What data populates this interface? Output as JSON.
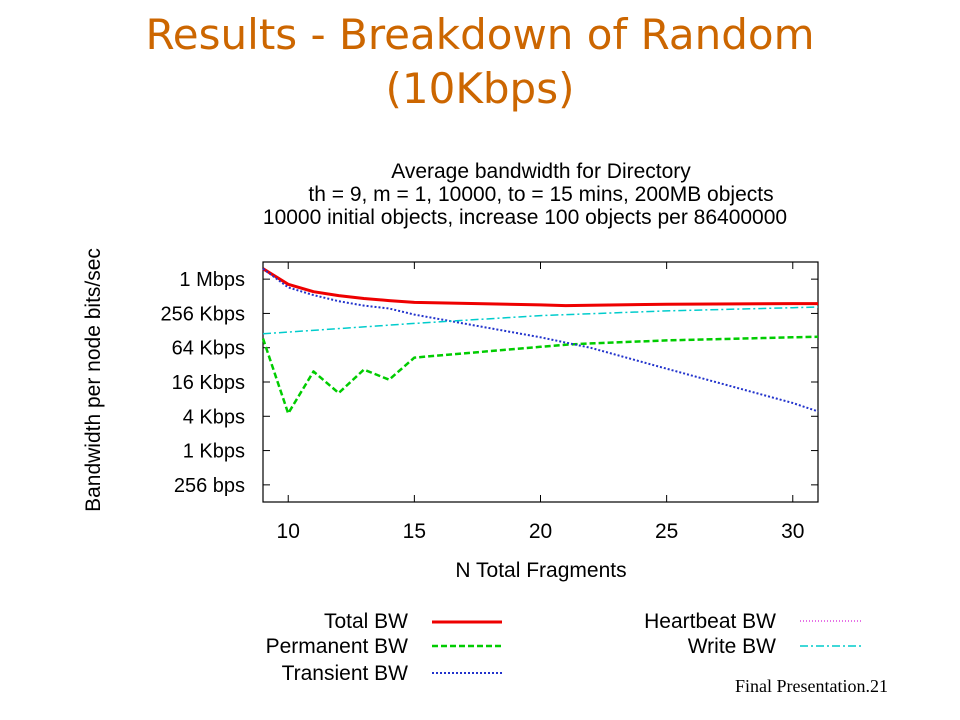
{
  "slide": {
    "title_line1": "Results - Breakdown of Random",
    "title_line2": "(10Kbps)",
    "footer": "Final Presentation.21"
  },
  "chart_data": {
    "type": "line",
    "title_lines": [
      "Average bandwidth for Directory",
      "th = 9, m = 1, 10000, to = 15 mins, 200MB objects",
      "10000 initial objects, increase 100 objects per 86400000"
    ],
    "xlabel": "N Total Fragments",
    "ylabel": "Bandwidth per node bits/sec",
    "y_scale": "log2",
    "xlim": [
      9,
      31
    ],
    "ylim_bits_per_sec": [
      128,
      2097152
    ],
    "x_ticks": [
      10,
      15,
      20,
      25,
      30
    ],
    "y_ticks": [
      {
        "label": "256 bps",
        "value": 256
      },
      {
        "label": "1 Kbps",
        "value": 1024
      },
      {
        "label": "4 Kbps",
        "value": 4096
      },
      {
        "label": "16 Kbps",
        "value": 16384
      },
      {
        "label": "64 Kbps",
        "value": 65536
      },
      {
        "label": "256 Kbps",
        "value": 262144
      },
      {
        "label": "1 Mbps",
        "value": 1048576
      }
    ],
    "grid": false,
    "legend_position": "bottom",
    "series": [
      {
        "name": "Total BW",
        "color": "#ee0000",
        "dash": "solid",
        "width": 3,
        "x": [
          9,
          10,
          11,
          12,
          13,
          14,
          15,
          20,
          21,
          22,
          25,
          30,
          31
        ],
        "y": [
          1600000,
          850000,
          630000,
          540000,
          480000,
          440000,
          410000,
          370000,
          360000,
          365000,
          380000,
          390000,
          390000
        ]
      },
      {
        "name": "Permanent BW",
        "color": "#00cc00",
        "dash": "6,3",
        "width": 2.5,
        "x": [
          9,
          10,
          11,
          12,
          13,
          14,
          15,
          20,
          21,
          22,
          25,
          30,
          31
        ],
        "y": [
          95000,
          4600,
          25000,
          10500,
          27000,
          18000,
          44000,
          68000,
          74000,
          78000,
          88000,
          100000,
          102000
        ]
      },
      {
        "name": "Transient BW",
        "color": "#2233cc",
        "dash": "2,2",
        "width": 2,
        "x": [
          9,
          10,
          11,
          12,
          13,
          14,
          15,
          20,
          22,
          25,
          30,
          31
        ],
        "y": [
          1600000,
          750000,
          550000,
          430000,
          360000,
          320000,
          250000,
          100000,
          65000,
          28000,
          7000,
          5000
        ]
      },
      {
        "name": "Heartbeat BW",
        "color": "#dd44dd",
        "dash": "1,2",
        "width": 1.5,
        "x": [],
        "y": []
      },
      {
        "name": "Write BW",
        "color": "#00cccc",
        "dash": "8,3,2,3",
        "width": 1.5,
        "x": [
          9,
          15,
          20,
          25,
          30,
          31
        ],
        "y": [
          115000,
          175000,
          240000,
          290000,
          330000,
          340000
        ]
      }
    ]
  }
}
